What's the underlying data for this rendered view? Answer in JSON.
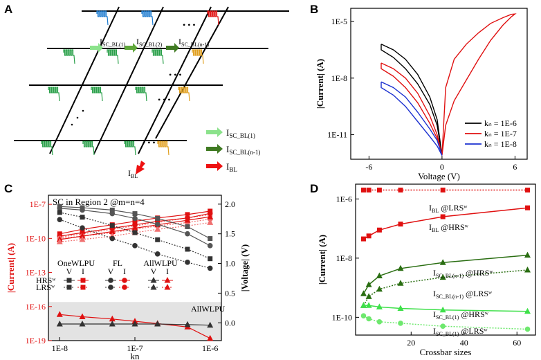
{
  "panels": {
    "A": {
      "label": "A",
      "arrows": [
        "I",
        "I",
        "I"
      ],
      "arrow_subs": [
        "SC_BL(1)",
        "SC_BL(2)",
        "SC_BL(n-1)"
      ],
      "legend": [
        {
          "main": "I",
          "sub": "SC_BL(1)",
          "color": "#8be28b"
        },
        {
          "main": "I",
          "sub": "SC_BL(n-1)",
          "color": "#3f7a22"
        },
        {
          "main": "I",
          "sub": "BL",
          "color": "#ee1111"
        }
      ],
      "ibl_main": "I",
      "ibl_sub": "BL",
      "dots": "• • •"
    },
    "B": {
      "label": "B"
    },
    "C": {
      "label": "C"
    },
    "D": {
      "label": "D"
    }
  },
  "chart_data": [
    {
      "panel": "B",
      "type": "line",
      "yscale": "log",
      "xlabel": "Voltage (V)",
      "ylabel": "|Current| (A)",
      "xlim": [
        -7.5,
        7
      ],
      "ylim_log10": [
        -12.3,
        -4.3
      ],
      "xticks": [
        -6,
        0,
        6
      ],
      "xtick_labels": [
        "-6",
        "0",
        "6"
      ],
      "yticks_log10": [
        -11,
        -8,
        -5
      ],
      "ytick_labels": [
        "1E-11",
        "1E-8",
        "1E-5"
      ],
      "series": [
        {
          "name": "kn = 1E-6",
          "color": "#000000",
          "x": [
            -5,
            -4,
            -3,
            -2,
            -1,
            -0.4,
            0
          ],
          "lower": [
            -6.5,
            -6.9,
            -7.5,
            -8.3,
            -9.4,
            -10.5,
            -12.1
          ],
          "upper": [
            -6.2,
            -6.5,
            -7.0,
            -7.8,
            -9.0,
            -10.2,
            -12.1
          ]
        },
        {
          "name": "kn = 1E-7",
          "color": "#e01010",
          "x": [
            -5,
            -4,
            -3,
            -2,
            -1,
            -0.4,
            0
          ],
          "lower": [
            -7.5,
            -7.9,
            -8.5,
            -9.3,
            -10.4,
            -11.2,
            -12.1
          ],
          "upper": [
            -7.2,
            -7.5,
            -8.0,
            -8.8,
            -10.0,
            -11.0,
            -12.1
          ],
          "x_pos": [
            0,
            0.3,
            1,
            2,
            3,
            4,
            5,
            5.7,
            6
          ],
          "pos_upper": [
            -12.1,
            -8.5,
            -7.0,
            -6.2,
            -5.6,
            -5.1,
            -4.8,
            -4.62,
            -4.6
          ],
          "pos_lower": [
            -12.1,
            -10.5,
            -9.2,
            -8.1,
            -7.0,
            -6.0,
            -5.2,
            -4.75,
            -4.6
          ]
        },
        {
          "name": "kn = 1E-8",
          "color": "#1a2fd0",
          "x": [
            -5,
            -4,
            -3,
            -2,
            -1,
            -0.4,
            0
          ],
          "lower": [
            -8.5,
            -8.9,
            -9.5,
            -10.3,
            -11.1,
            -11.6,
            -12.1
          ],
          "upper": [
            -8.2,
            -8.5,
            -9.0,
            -9.8,
            -10.7,
            -11.3,
            -12.1
          ]
        }
      ],
      "legend": [
        "kₙ = 1E-6",
        "kₙ = 1E-7",
        "kₙ = 1E-8"
      ]
    },
    {
      "panel": "C",
      "type": "line",
      "yscale": "log",
      "title": "SC in Region 2  @m=n=4",
      "xlabel": "kn",
      "ylabel": "|Current| (A)",
      "ylabel_right": "|Voltage| (V)",
      "x": [
        1e-08,
        2e-08,
        5e-08,
        1e-07,
        2e-07,
        5e-07,
        1e-06
      ],
      "xticks_log10": [
        -8,
        -7,
        -6
      ],
      "xtick_labels": [
        "1E-8",
        "1E-7",
        "1E-6"
      ],
      "ylim_log10": [
        -19,
        -6.2
      ],
      "yticks_log10": [
        -7,
        -10,
        -13,
        -16,
        -19
      ],
      "ytick_labels": [
        "1E-7",
        "1E-10",
        "1E-13",
        "1E-16",
        "1E-19"
      ],
      "y2lim": [
        -0.3,
        2.15
      ],
      "y2ticks": [
        0.0,
        0.5,
        1.0,
        1.5,
        2.0
      ],
      "y2tick_labels": [
        "0.0",
        "0.5",
        "1.0",
        "1.5",
        "2.0"
      ],
      "current_series": [
        {
          "name": "OneWLPU HRS",
          "values_log10": [
            -9.6,
            -9.2,
            -8.8,
            -8.5,
            -8.2,
            -7.9,
            -7.6
          ]
        },
        {
          "name": "OneWLPU LRS",
          "values_log10": [
            -9.9,
            -9.6,
            -9.2,
            -8.9,
            -8.6,
            -8.2,
            -7.9
          ]
        },
        {
          "name": "FL HRS",
          "values_log10": [
            -9.8,
            -9.5,
            -9.1,
            -8.8,
            -8.5,
            -8.2,
            -7.8
          ]
        },
        {
          "name": "FL LRS",
          "values_log10": [
            -10.0,
            -9.8,
            -9.5,
            -9.2,
            -8.9,
            -8.6,
            -8.3
          ]
        },
        {
          "name": "AllWLPU HRS",
          "values_log10": [
            -10.1,
            -9.8,
            -9.4,
            -9.1,
            -8.8,
            -8.4,
            -8.1
          ]
        },
        {
          "name": "AllWLPU LRS",
          "values_log10": [
            -10.3,
            -10.1,
            -9.8,
            -9.5,
            -9.2,
            -8.9,
            -8.6
          ]
        },
        {
          "name": "AllWLPU I (shaded)",
          "values_log10": [
            -16.7,
            -16.9,
            -17.1,
            -17.3,
            -17.5,
            -17.8,
            -18.8
          ]
        }
      ],
      "voltage_series": [
        {
          "name": "OneWLPU HRS V",
          "values": [
            1.96,
            1.94,
            1.9,
            1.84,
            1.76,
            1.62,
            1.42
          ]
        },
        {
          "name": "FL HRS V",
          "values": [
            1.93,
            1.9,
            1.84,
            1.76,
            1.66,
            1.5,
            1.3
          ]
        },
        {
          "name": "OneWLPU LRS V",
          "values": [
            1.86,
            1.78,
            1.64,
            1.52,
            1.4,
            1.24,
            1.08
          ]
        },
        {
          "name": "FL LRS V",
          "values": [
            1.74,
            1.6,
            1.42,
            1.3,
            1.16,
            1.02,
            0.92
          ]
        },
        {
          "name": "AllWLPU V",
          "values": [
            -0.02,
            -0.02,
            -0.02,
            -0.02,
            -0.02,
            -0.03,
            -0.04
          ]
        }
      ],
      "legend_groups": [
        "OneWLPU",
        "FL",
        "AllWLPU"
      ],
      "legend_cols": [
        "V",
        "I"
      ],
      "legend_rows": [
        "HRSʷ",
        "LRSʷ"
      ],
      "shaded_label": "AllWLPU"
    },
    {
      "panel": "D",
      "type": "line",
      "yscale": "log",
      "xlabel": "Crossbar sizes",
      "ylabel": "|Current| (A)",
      "x": [
        2,
        4,
        8,
        16,
        32,
        64
      ],
      "xlim": [
        -1,
        67
      ],
      "xticks": [
        20,
        40,
        60
      ],
      "xtick_labels": [
        "20",
        "40",
        "60"
      ],
      "ylim_log10": [
        -10.6,
        -5.5
      ],
      "yticks_log10": [
        -6,
        -8,
        -10
      ],
      "ytick_labels": [
        "1E-6",
        "1E-8",
        "1E-10"
      ],
      "series": [
        {
          "name": "I_BL @LRS^w",
          "color": "#e01010",
          "marker": "square",
          "dashed": true,
          "values_log10": [
            -5.7,
            -5.7,
            -5.7,
            -5.7,
            -5.7,
            -5.7
          ]
        },
        {
          "name": "I_BL @HRS^w",
          "color": "#e01010",
          "marker": "square",
          "dashed": false,
          "values_log10": [
            -7.35,
            -7.25,
            -7.05,
            -6.85,
            -6.6,
            -6.3
          ]
        },
        {
          "name": "I_SC_BL(n-1) @HRS^w",
          "color": "#2a6e12",
          "marker": "triangle",
          "dashed": false,
          "values_log10": [
            -9.2,
            -8.9,
            -8.6,
            -8.35,
            -8.15,
            -7.9
          ]
        },
        {
          "name": "I_SC_BL(n-1) @LRS^w",
          "color": "#2a6e12",
          "marker": "triangle",
          "dashed": true,
          "values_log10": [
            -9.6,
            -9.3,
            -9.05,
            -8.85,
            -8.65,
            -8.4
          ]
        },
        {
          "name": "I_SC_BL(1) @HRS^w",
          "color": "#3ee04a",
          "marker": "triangle",
          "dashed": false,
          "values_log10": [
            -9.6,
            -9.6,
            -9.65,
            -9.7,
            -9.75,
            -9.8
          ]
        },
        {
          "name": "I_SC_BL(1) @LRS^w",
          "color": "#6ee86e",
          "marker": "circle",
          "dashed": true,
          "values_log10": [
            -9.95,
            -10.05,
            -10.15,
            -10.2,
            -10.3,
            -10.4
          ]
        }
      ],
      "labels": [
        {
          "main": "I",
          "sub": "BL",
          "tail": " @LRSʷ"
        },
        {
          "main": "I",
          "sub": "BL",
          "tail": " @HRSʷ"
        },
        {
          "main": "I",
          "sub": "SC_BL(n-1)",
          "tail": " @HRSʷ"
        },
        {
          "main": "I",
          "sub": "SC_BL(n-1)",
          "tail": " @LRSʷ"
        },
        {
          "main": "I",
          "sub": "SC_BL(1)",
          "tail": " @HRSʷ"
        },
        {
          "main": "I",
          "sub": "SC_BL(1)",
          "tail": " @LRSʷ"
        }
      ]
    }
  ]
}
